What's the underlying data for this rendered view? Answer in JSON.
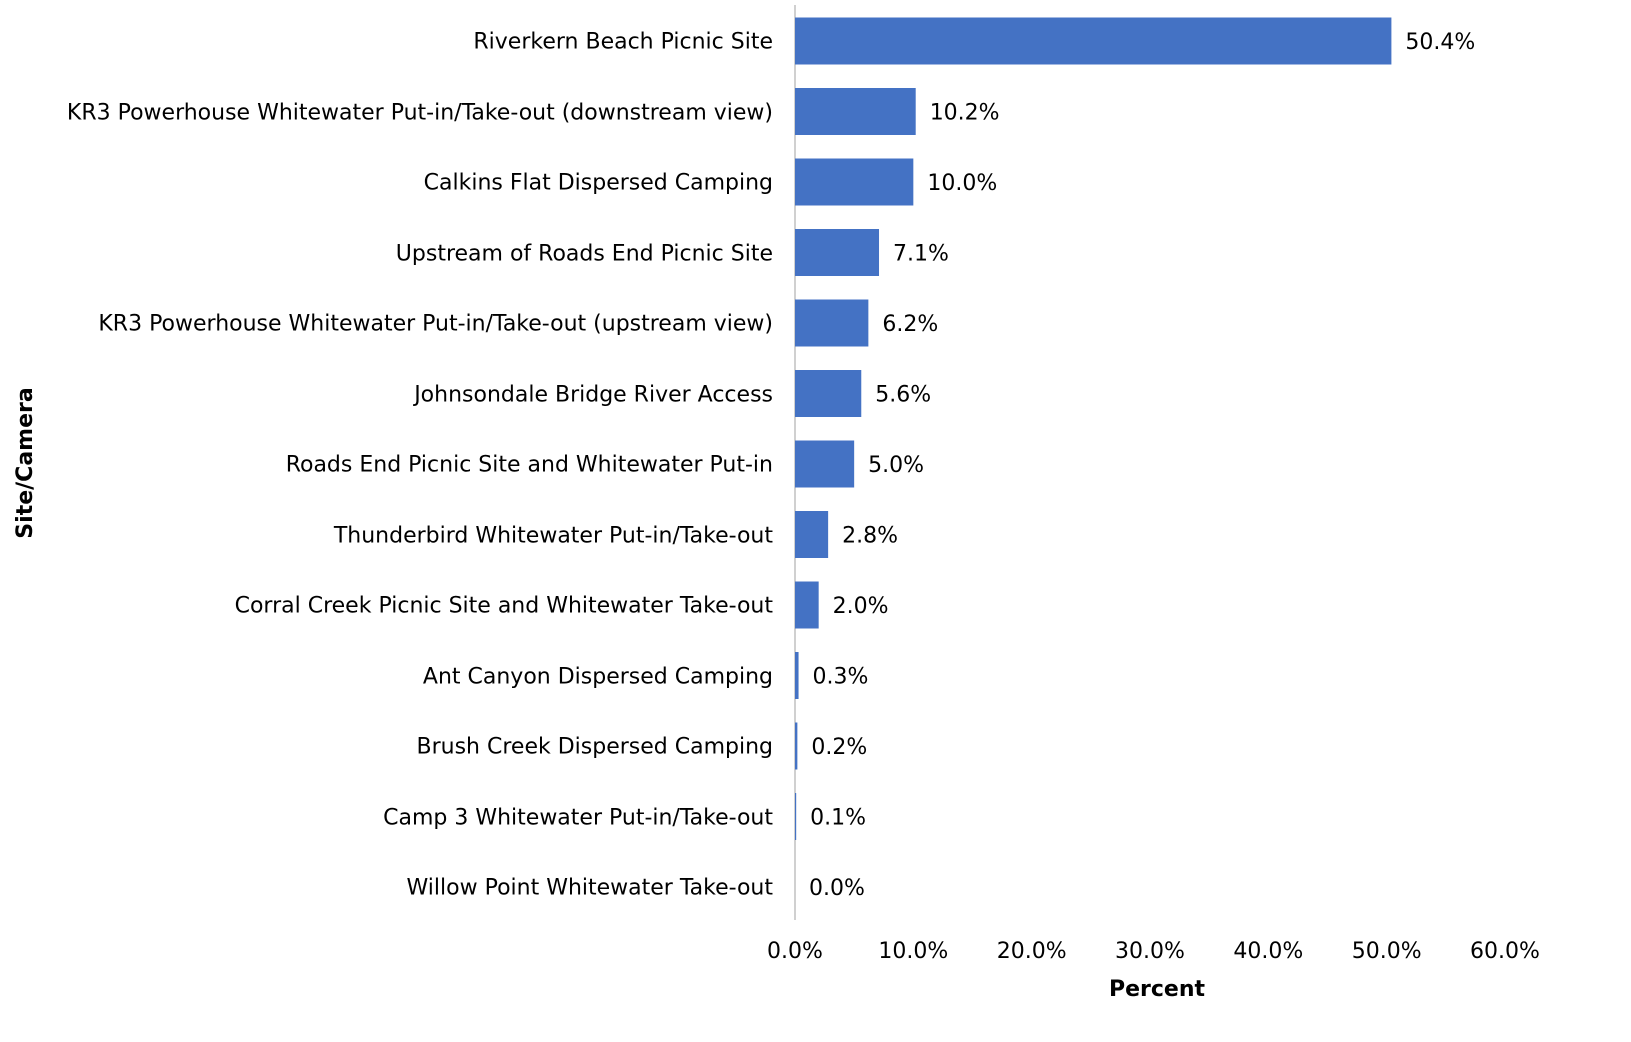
{
  "chart_data": {
    "type": "barh",
    "categories": [
      "Riverkern Beach Picnic Site",
      "KR3 Powerhouse Whitewater Put-in/Take-out (downstream view)",
      "Calkins Flat Dispersed Camping",
      "Upstream of Roads End Picnic Site",
      "KR3 Powerhouse Whitewater Put-in/Take-out (upstream view)",
      "Johnsondale Bridge River Access",
      "Roads End Picnic Site and Whitewater Put-in",
      "Thunderbird Whitewater Put-in/Take-out",
      "Corral Creek Picnic Site and Whitewater Take-out",
      "Ant Canyon Dispersed Camping",
      "Brush Creek Dispersed Camping",
      "Camp 3 Whitewater Put-in/Take-out",
      "Willow Point Whitewater Take-out"
    ],
    "values": [
      50.4,
      10.2,
      10.0,
      7.1,
      6.2,
      5.6,
      5.0,
      2.8,
      2.0,
      0.3,
      0.2,
      0.1,
      0.0
    ],
    "value_labels": [
      "50.4%",
      "10.2%",
      "10.0%",
      "7.1%",
      "6.2%",
      "5.6%",
      "5.0%",
      "2.8%",
      "2.0%",
      "0.3%",
      "0.2%",
      "0.1%",
      "0.0%"
    ],
    "color": "#4472c4",
    "xlabel": "Percent",
    "ylabel": "Site/Camera",
    "xlim": [
      0,
      60
    ],
    "xticks": [
      {
        "value": 0,
        "label": "0.0%"
      },
      {
        "value": 10,
        "label": "10.0%"
      },
      {
        "value": 20,
        "label": "20.0%"
      },
      {
        "value": 30,
        "label": "30.0%"
      },
      {
        "value": 40,
        "label": "40.0%"
      },
      {
        "value": 50,
        "label": "50.0%"
      },
      {
        "value": 60,
        "label": "60.0%"
      }
    ],
    "grid": false
  }
}
